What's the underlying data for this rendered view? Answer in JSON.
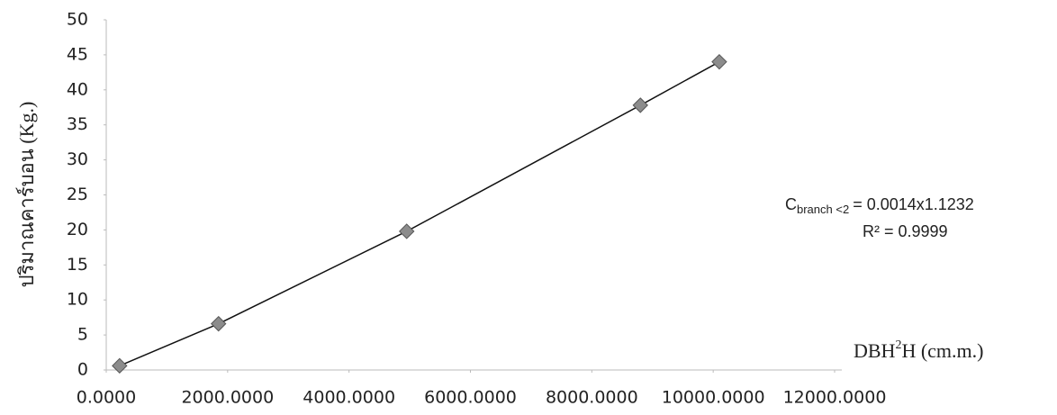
{
  "chart_data": {
    "type": "scatter",
    "x_label": {
      "base": "DBH",
      "sup": "2",
      "rest": "H (cm.m.)"
    },
    "y_label": "ปริมาณคาร์บอน (Kg.)",
    "annotation": {
      "base": "C",
      "sub": "branch <2",
      "rest": "= 0.0014x1.1232",
      "r2": "R² = 0.9999"
    },
    "x": [
      220,
      1850,
      4950,
      8800,
      10100
    ],
    "values": [
      0.6,
      6.6,
      19.8,
      37.8,
      44.0
    ],
    "color": "#8c8c8c",
    "xlim": [
      0,
      12000
    ],
    "xticks": [
      {
        "value": 0,
        "label": "0.0000"
      },
      {
        "value": 2000,
        "label": "2000.0000"
      },
      {
        "value": 4000,
        "label": "4000.0000"
      },
      {
        "value": 6000,
        "label": "6000.0000"
      },
      {
        "value": 8000,
        "label": "8000.0000"
      },
      {
        "value": 10000,
        "label": "10000.0000"
      },
      {
        "value": 12000,
        "label": "12000.0000"
      }
    ],
    "ylim": [
      0,
      50
    ],
    "yticks": [
      0,
      5,
      10,
      15,
      20,
      25,
      30,
      35,
      40,
      45,
      50
    ],
    "grid": false
  }
}
